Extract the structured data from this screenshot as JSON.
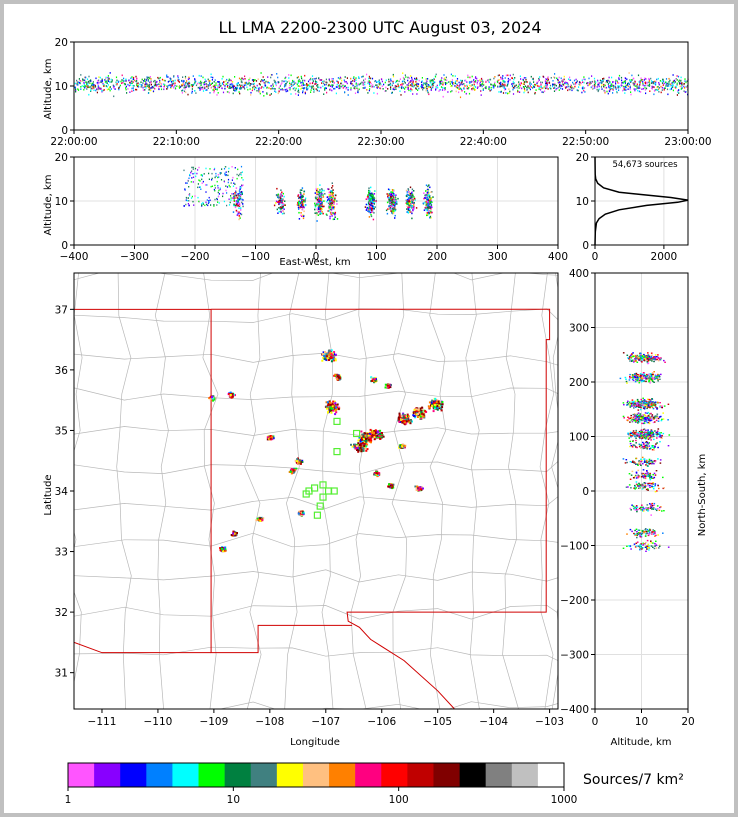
{
  "chart_data": [
    {
      "id": "time-altitude",
      "type": "scatter",
      "title": "LL LMA 2200-2300 UTC August 03, 2024",
      "xlabel": "",
      "ylabel": "Altitude, km",
      "xlim": [
        "22:00:00",
        "23:00:00"
      ],
      "ylim": [
        0,
        20
      ],
      "x_ticks": [
        "22:00:00",
        "22:10:00",
        "22:20:00",
        "22:30:00",
        "22:40:00",
        "22:50:00",
        "23:00:00"
      ],
      "y_ticks": [
        0,
        10,
        20
      ],
      "grid": true
    },
    {
      "id": "eastwest-altitude",
      "type": "scatter",
      "xlabel": "East-West, km",
      "ylabel": "Altitude, km",
      "xlim": [
        -400,
        400
      ],
      "ylim": [
        0,
        20
      ],
      "x_ticks": [
        -400,
        -300,
        -200,
        -100,
        0,
        100,
        200,
        300,
        400
      ],
      "y_ticks": [
        0,
        10,
        20
      ],
      "clusters_x": [
        -130,
        -60,
        -25,
        5,
        25,
        90,
        125,
        155,
        185
      ],
      "grid": true
    },
    {
      "id": "altitude-histogram",
      "type": "line",
      "annotation": "54,673 sources",
      "xlim": [
        0,
        2700
      ],
      "ylim": [
        0,
        20
      ],
      "x_ticks": [
        0,
        2000
      ],
      "y_ticks": [
        0,
        10,
        20
      ],
      "profile": [
        {
          "alt": 0,
          "count": 0
        },
        {
          "alt": 3,
          "count": 10
        },
        {
          "alt": 5,
          "count": 40
        },
        {
          "alt": 6,
          "count": 120
        },
        {
          "alt": 7,
          "count": 300
        },
        {
          "alt": 8,
          "count": 700
        },
        {
          "alt": 9,
          "count": 1500
        },
        {
          "alt": 9.7,
          "count": 2400
        },
        {
          "alt": 10.2,
          "count": 2700
        },
        {
          "alt": 10.8,
          "count": 2200
        },
        {
          "alt": 11.5,
          "count": 1300
        },
        {
          "alt": 12,
          "count": 700
        },
        {
          "alt": 13,
          "count": 250
        },
        {
          "alt": 14,
          "count": 80
        },
        {
          "alt": 15,
          "count": 20
        },
        {
          "alt": 16,
          "count": 5
        },
        {
          "alt": 20,
          "count": 0
        }
      ],
      "grid": true
    },
    {
      "id": "plan-view",
      "type": "scatter",
      "xlabel": "Longitude",
      "ylabel": "Latitude",
      "xlim": [
        -111.5,
        -102.85
      ],
      "ylim": [
        30.4,
        37.6
      ],
      "x_ticks": [
        -111,
        -110,
        -109,
        -108,
        -107,
        -106,
        -105,
        -104,
        -103
      ],
      "y_ticks": [
        31,
        32,
        33,
        34,
        35,
        36,
        37
      ],
      "stations": [
        [
          -107.2,
          34.05
        ],
        [
          -107.05,
          34.1
        ],
        [
          -106.95,
          34.0
        ],
        [
          -107.3,
          34.0
        ],
        [
          -107.1,
          33.75
        ],
        [
          -107.15,
          33.6
        ],
        [
          -106.8,
          34.65
        ],
        [
          -106.8,
          35.15
        ],
        [
          -106.45,
          34.95
        ],
        [
          -107.05,
          33.9
        ],
        [
          -107.35,
          33.95
        ],
        [
          -106.85,
          34.0
        ]
      ],
      "clusters": [
        [
          -106.95,
          36.25
        ],
        [
          -105.05,
          35.45
        ],
        [
          -105.35,
          35.3
        ],
        [
          -105.6,
          35.2
        ],
        [
          -106.1,
          34.95
        ],
        [
          -106.3,
          34.9
        ],
        [
          -106.4,
          34.75
        ],
        [
          -106.9,
          35.4
        ],
        [
          -105.9,
          35.75
        ],
        [
          -106.15,
          35.85
        ],
        [
          -106.1,
          34.3
        ],
        [
          -107.5,
          34.5
        ],
        [
          -108.0,
          34.9
        ],
        [
          -107.45,
          33.65
        ],
        [
          -105.85,
          34.1
        ],
        [
          -105.65,
          34.75
        ],
        [
          -105.35,
          34.05
        ],
        [
          -108.65,
          33.3
        ],
        [
          -108.2,
          33.55
        ],
        [
          -106.8,
          35.9
        ],
        [
          -108.7,
          35.6
        ],
        [
          -109.05,
          35.55
        ],
        [
          -108.85,
          33.05
        ],
        [
          -107.6,
          34.35
        ]
      ]
    },
    {
      "id": "altitude-northsouth",
      "type": "scatter",
      "xlabel": "Altitude, km",
      "ylabel": "North-South, km",
      "xlim": [
        0,
        20
      ],
      "ylim": [
        -400,
        400
      ],
      "x_ticks": [
        0,
        10,
        20
      ],
      "y_ticks": [
        -400,
        -300,
        -200,
        -100,
        0,
        100,
        200,
        300,
        400
      ],
      "clusters_y": [
        245,
        210,
        160,
        135,
        105,
        85,
        55,
        30,
        10,
        -30,
        -75,
        -100
      ],
      "grid": true
    }
  ],
  "colorbar": {
    "label": "Sources/7 km²",
    "tick_labels": [
      "1",
      "10",
      "100",
      "1000"
    ],
    "colors": [
      "#ff55ff",
      "#8800ff",
      "#0000ff",
      "#0080ff",
      "#00ffff",
      "#00ff00",
      "#008040",
      "#408080",
      "#ffff00",
      "#ffc080",
      "#ff8000",
      "#ff0080",
      "#ff0000",
      "#c00000",
      "#800000",
      "#000000",
      "#808080",
      "#c0c0c0",
      "#ffffff"
    ]
  }
}
